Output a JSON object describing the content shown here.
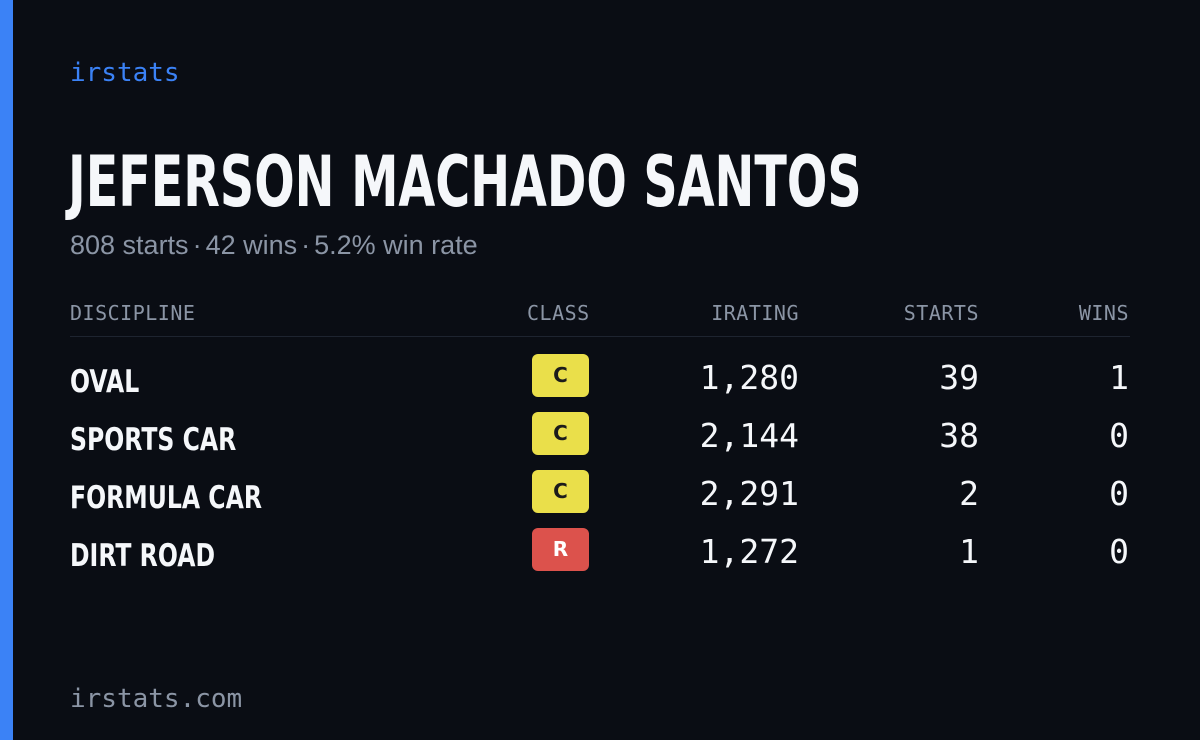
{
  "brand": "irstats",
  "colors": {
    "accent": "#3b82f6",
    "background": "#0a0d14",
    "class_c": "#eadf4a",
    "class_r": "#dc524c"
  },
  "driver": {
    "name": "JEFERSON MACHADO SANTOS",
    "starts": "808 starts",
    "wins": "42 wins",
    "win_rate": "5.2% win rate",
    "separator": "·"
  },
  "table": {
    "headers": {
      "discipline": "DISCIPLINE",
      "class": "CLASS",
      "irating": "IRATING",
      "starts": "STARTS",
      "wins": "WINS"
    },
    "rows": [
      {
        "discipline": "OVAL",
        "class": "C",
        "class_color": "#eadf4a",
        "class_text_color": "#1b1b1b",
        "irating": "1,280",
        "starts": "39",
        "wins": "1"
      },
      {
        "discipline": "SPORTS CAR",
        "class": "C",
        "class_color": "#eadf4a",
        "class_text_color": "#1b1b1b",
        "irating": "2,144",
        "starts": "38",
        "wins": "0"
      },
      {
        "discipline": "FORMULA CAR",
        "class": "C",
        "class_color": "#eadf4a",
        "class_text_color": "#1b1b1b",
        "irating": "2,291",
        "starts": "2",
        "wins": "0"
      },
      {
        "discipline": "DIRT ROAD",
        "class": "R",
        "class_color": "#dc524c",
        "class_text_color": "#ffffff",
        "irating": "1,272",
        "starts": "1",
        "wins": "0"
      }
    ]
  },
  "footer": "irstats.com"
}
